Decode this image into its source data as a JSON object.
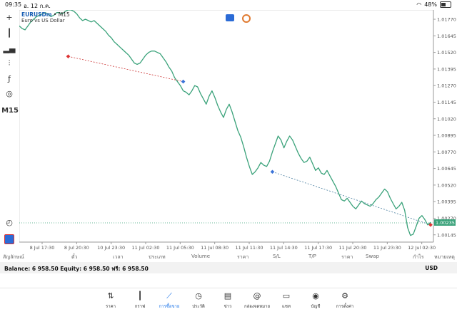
{
  "status": {
    "time": "09:35",
    "date": "อ. 12 ก.ค.",
    "battery": "48%"
  },
  "toolbar": {
    "timeframe": "M15"
  },
  "chart_header": {
    "symbol": "EURUSDm",
    "timeframe": "M15",
    "description": "Euro vs US Dollar"
  },
  "chart_data": {
    "type": "line",
    "price_ticks": [
      "1.01770",
      "1.01645",
      "1.01520",
      "1.01395",
      "1.01270",
      "1.01145",
      "1.01020",
      "1.00895",
      "1.00770",
      "1.00645",
      "1.00520",
      "1.00395",
      "1.00270",
      "1.00145"
    ],
    "x_ticks": [
      "8 Jul 17:30",
      "8 Jul 20:30",
      "10 Jul 23:30",
      "11 Jul 02:30",
      "11 Jul 05:30",
      "11 Jul 08:30",
      "11 Jul 11:30",
      "11 Jul 14:30",
      "11 Jul 17:30",
      "11 Jul 20:30",
      "11 Jul 23:30",
      "12 Jul 02:30"
    ],
    "ylim": [
      1.0009,
      1.0184
    ],
    "current_price": "1.00235",
    "values": [
      1.0172,
      1.017,
      1.0169,
      1.0172,
      1.0175,
      1.0177,
      1.0179,
      1.018,
      1.0181,
      1.0182,
      1.0181,
      1.0179,
      1.018,
      1.0182,
      1.0182,
      1.0181,
      1.0183,
      1.0184,
      1.0184,
      1.0183,
      1.0181,
      1.0178,
      1.0176,
      1.0177,
      1.0176,
      1.0175,
      1.0176,
      1.0174,
      1.0172,
      1.017,
      1.0168,
      1.0165,
      1.0163,
      1.016,
      1.0158,
      1.0156,
      1.0154,
      1.0152,
      1.015,
      1.0147,
      1.0144,
      1.0143,
      1.0144,
      1.0147,
      1.015,
      1.0152,
      1.0153,
      1.0153,
      1.0152,
      1.0151,
      1.0148,
      1.0145,
      1.0141,
      1.0138,
      1.0133,
      1.013,
      1.0127,
      1.0123,
      1.0122,
      1.012,
      1.0123,
      1.0127,
      1.0126,
      1.0121,
      1.0117,
      1.0113,
      1.0119,
      1.0123,
      1.0118,
      1.0112,
      1.0107,
      1.0103,
      1.0109,
      1.0113,
      1.0107,
      1.01,
      1.0093,
      1.0088,
      1.0081,
      1.0073,
      1.0066,
      1.006,
      1.0062,
      1.0065,
      1.0069,
      1.0067,
      1.0066,
      1.007,
      1.0077,
      1.0083,
      1.0089,
      1.0086,
      1.008,
      1.0085,
      1.0089,
      1.0086,
      1.0081,
      1.0076,
      1.0072,
      1.0069,
      1.007,
      1.0073,
      1.0068,
      1.0063,
      1.0065,
      1.0061,
      1.006,
      1.0063,
      1.0059,
      1.0055,
      1.0051,
      1.0046,
      1.0041,
      1.004,
      1.0042,
      1.0039,
      1.0036,
      1.0034,
      1.0037,
      1.004,
      1.0038,
      1.0037,
      1.0036,
      1.0038,
      1.0041,
      1.0043,
      1.0046,
      1.0049,
      1.0047,
      1.0042,
      1.0038,
      1.0034,
      1.0036,
      1.0039,
      1.0033,
      1.002,
      1.0014,
      1.0015,
      1.0021,
      1.0027,
      1.0029,
      1.0026,
      1.0022,
      1.0024
    ],
    "trade_lines": [
      {
        "from": [
          17,
          1.0149
        ],
        "to": [
          57,
          1.013
        ],
        "color": "#cc3333"
      },
      {
        "from": [
          88,
          1.0062
        ],
        "to": [
          143,
          1.0022
        ],
        "color": "#4a7fa0"
      }
    ],
    "markers": [
      {
        "i": 17,
        "v": 1.0149,
        "color": "#dd3333"
      },
      {
        "i": 57,
        "v": 1.013,
        "color": "#3a73d8"
      },
      {
        "i": 88,
        "v": 1.0062,
        "color": "#3a73d8"
      },
      {
        "i": 143,
        "v": 1.0022,
        "color": "#dd3333"
      }
    ],
    "line_color": "#3aa27a",
    "grid": false
  },
  "columns": [
    "สัญลักษณ์",
    "ตั๋ว",
    "เวลา",
    "ประเภท",
    "Volume",
    "ราคา",
    "S/L",
    "T/P",
    "ราคา",
    "Swap",
    "กำไร",
    "หมายเหตุ"
  ],
  "balance": {
    "text": "Balance: 6 958.50 Equity: 6 958.50 ฟรี: 6 958.50",
    "currency": "USD"
  },
  "nav": [
    {
      "label": "ราคา",
      "icon": "quotes-icon",
      "active": false
    },
    {
      "label": "กราฟ",
      "icon": "chart-candles-icon",
      "active": false
    },
    {
      "label": "การซื้อขาย",
      "icon": "trade-icon",
      "active": true
    },
    {
      "label": "ประวัติ",
      "icon": "history-icon",
      "active": false
    },
    {
      "label": "ข่าว",
      "icon": "news-icon",
      "active": false
    },
    {
      "label": "กล่องจดหมาย",
      "icon": "mailbox-icon",
      "active": false
    },
    {
      "label": "แชท",
      "icon": "chat-icon",
      "active": false
    },
    {
      "label": "บัญชี",
      "icon": "account-icon",
      "active": false
    },
    {
      "label": "การตั้งค่า",
      "icon": "settings-icon",
      "active": false
    }
  ]
}
